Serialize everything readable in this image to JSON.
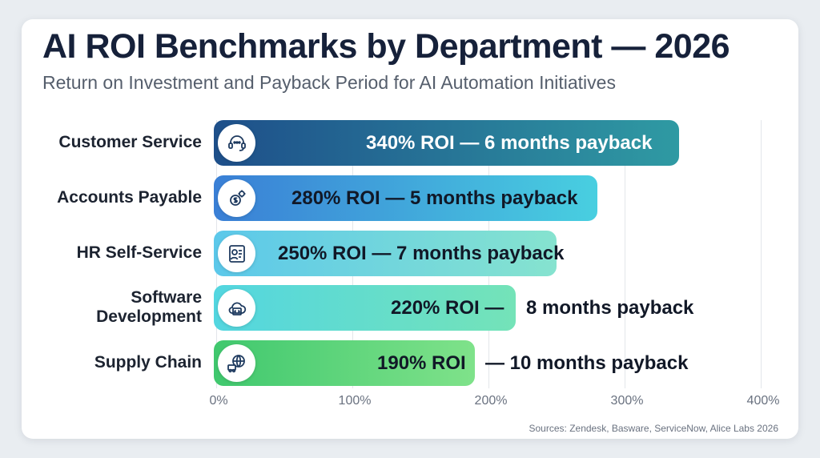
{
  "chart_data": {
    "type": "bar",
    "orientation": "horizontal",
    "title": "AI ROI Benchmarks by Department — 2026",
    "subtitle": "Return on Investment and Payback Period for AI Automation Initiatives",
    "categories": [
      "Customer Service",
      "Accounts Payable",
      "HR Self-Service",
      "Software Development",
      "Supply Chain"
    ],
    "values": [
      340,
      280,
      250,
      220,
      190
    ],
    "payback_months": [
      6,
      5,
      7,
      8,
      10
    ],
    "bar_labels": [
      "340% ROI — 6 months payback",
      "280% ROI — 5 months payback",
      "250% ROI — 7 months payback",
      "220% ROI —  8 months payback",
      "190% ROI  — 10 months payback"
    ],
    "xlim": [
      0,
      400
    ],
    "x_ticks": [
      "0%",
      "100%",
      "200%",
      "300%",
      "400%"
    ],
    "grid": true,
    "source": "Sources: Zendesk, Basware, ServiceNow, Alice Labs 2026",
    "colors": {
      "bar_gradients": [
        [
          "#1e4f8a",
          "#2f9aa3"
        ],
        [
          "#3a7fd6",
          "#48cfe0"
        ],
        [
          "#5cc8ea",
          "#86e3cf"
        ],
        [
          "#53d6e0",
          "#74e3b8"
        ],
        [
          "#40c86e",
          "#7fe28a"
        ]
      ],
      "label_colors": [
        "#ffffff",
        "#111827",
        "#111827",
        "#111827",
        "#111827"
      ],
      "icon_color": "#1e3a5f"
    },
    "icons": [
      "headset-chat-icon",
      "dollar-gear-icon",
      "id-badge-icon",
      "cloud-code-icon",
      "globe-truck-icon"
    ]
  }
}
